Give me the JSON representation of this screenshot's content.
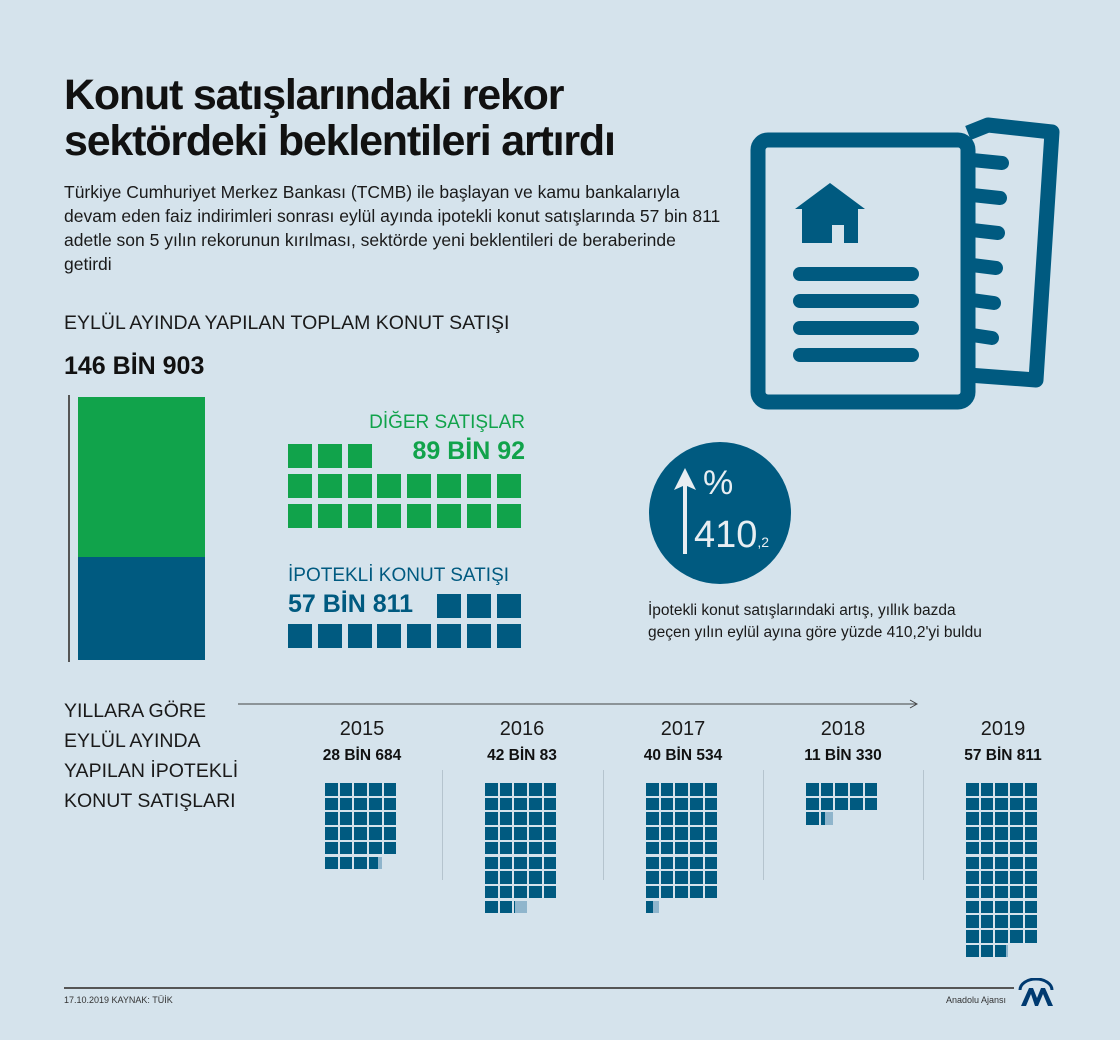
{
  "header": {
    "title_line1": "Konut satışlarındaki rekor",
    "title_line2": "sektördeki beklentileri artırdı",
    "intro": "Türkiye Cumhuriyet Merkez Bankası (TCMB) ile başlayan ve kamu bankalarıyla devam eden faiz indirimleri sonrası eylül ayında ipotekli konut satışlarında 57 bin 811 adetle son 5 yılın rekorunun kırılması, sektörde yeni beklentileri de beraberinde getirdi"
  },
  "colors": {
    "background": "#d5e3ec",
    "navy": "#005a80",
    "green": "#11a34b",
    "partial": "#8fb5cc"
  },
  "icons": {
    "document": "document-house-icon",
    "arrow": "arrow-up-icon",
    "logo": "aa-logo"
  },
  "total_section": {
    "heading": "EYLÜL AYINDA YAPILAN TOPLAM KONUT SATIŞI",
    "total_label": "146 BİN 903",
    "other_label": "DİĞER SATIŞLAR",
    "other_value": "89 BİN 92",
    "mortgage_label": "İPOTEKLİ KONUT SATIŞI",
    "mortgage_value": "57 BİN 811"
  },
  "increase": {
    "percent_sign": "%",
    "value_int": "410",
    "value_dec": ",2",
    "caption_line1": "İpotekli konut satışlarındaki artış, yıllık bazda",
    "caption_line2": "geçen yılın eylül ayına göre yüzde 410,2'yi buldu"
  },
  "chart_data": [
    {
      "type": "bar",
      "title": "EYLÜL AYINDA YAPILAN TOPLAM KONUT SATIŞI",
      "categories": [
        "DİĞER SATIŞLAR",
        "İPOTEKLİ KONUT SATIŞI"
      ],
      "values": [
        89092,
        57811
      ],
      "total": 146903
    },
    {
      "type": "bar",
      "title": "YILLARA GÖRE EYLÜL AYINDA YAPILAN İPOTEKLİ KONUT SATIŞLARI",
      "categories": [
        "2015",
        "2016",
        "2017",
        "2018",
        "2019"
      ],
      "values": [
        28684,
        42083,
        40534,
        11330,
        57811
      ],
      "labels": [
        "28 BİN 684",
        "42 BİN 83",
        "40 BİN 534",
        "11 BİN 330",
        "57 BİN 811"
      ]
    }
  ],
  "years_section": {
    "heading_lines": [
      "YILLARA GÖRE",
      "EYLÜL AYINDA",
      "YAPILAN İPOTEKLİ",
      "KONUT SATIŞLARI"
    ]
  },
  "footer": {
    "date_source": "17.10.2019  KAYNAK: TÜİK",
    "agency": "Anadolu Ajansı"
  }
}
